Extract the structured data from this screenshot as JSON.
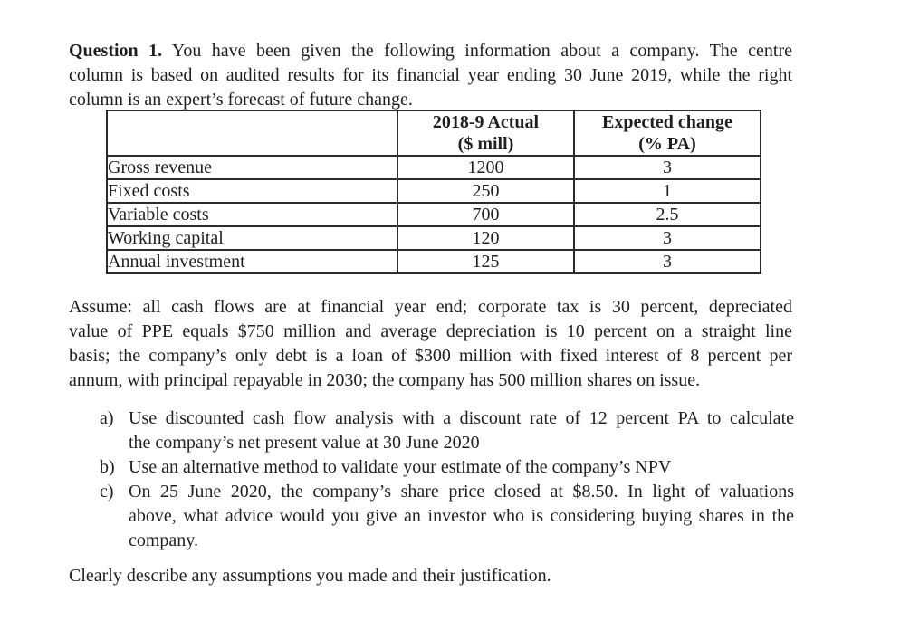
{
  "question": {
    "label": "Question 1.",
    "line1_rest": " You have been given the following information about a company. The centre",
    "line2": "column is based on audited results for its financial year ending 30 June 2019, while the right",
    "line3": "column is an expert’s forecast of future change."
  },
  "table": {
    "col_headers": {
      "actual_line1": "2018-9 Actual",
      "actual_line2": "($ mill)",
      "change_line1": "Expected change",
      "change_line2": "(% PA)"
    },
    "rows": [
      {
        "label": "Gross revenue",
        "actual": "1200",
        "change": "3"
      },
      {
        "label": "Fixed costs",
        "actual": "250",
        "change": "1"
      },
      {
        "label": "Variable costs",
        "actual": "700",
        "change": "2.5"
      },
      {
        "label": "Working capital",
        "actual": "120",
        "change": "3"
      },
      {
        "label": "Annual investment",
        "actual": "125",
        "change": "3"
      }
    ]
  },
  "assume": {
    "line1": "Assume: all cash flows are at financial year end; corporate tax is 30 percent, depreciated",
    "line2": "value of PPE equals $750 million and average depreciation is 10 percent on a straight line",
    "line3": "basis; the company’s only debt is a loan of $300 million with fixed interest of 8 percent per",
    "line4": "annum, with principal repayable in 2030; the company has 500 million shares on issue."
  },
  "list": {
    "items": [
      {
        "marker": "a)",
        "line1": "Use discounted cash flow analysis with a discount rate of 12 percent PA to calculate",
        "line2": "the company’s net present value at 30 June 2020"
      },
      {
        "marker": "b)",
        "line1": "Use an alternative method to validate your estimate of the company’s NPV"
      },
      {
        "marker": "c)",
        "line1": "On 25 June 2020, the company’s share price closed at $8.50. In light of valuations",
        "line2": "above, what advice would you give an investor who is considering buying shares in the",
        "line3": "company."
      }
    ]
  },
  "closing": "Clearly describe any assumptions you made and their justification.",
  "colors": {
    "background": "#ffffff",
    "text": "#1f1f1f",
    "table_border": "#2b2b2b"
  }
}
